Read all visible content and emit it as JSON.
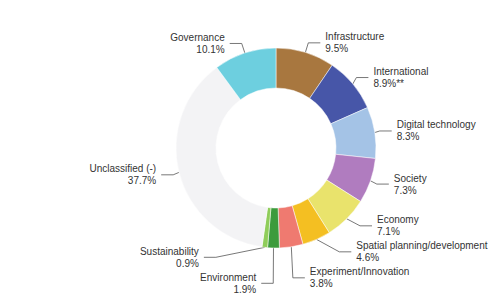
{
  "chart_data": {
    "type": "donut",
    "categories": [
      "Infrastructure",
      "International",
      "Digital technology",
      "Society",
      "Economy",
      "Spatial planning/development",
      "Experiment/Innovation",
      "Environment",
      "Sustainability",
      "Unclassified (-)",
      "Governance"
    ],
    "values": [
      9.5,
      8.9,
      8.3,
      7.3,
      7.1,
      4.6,
      3.8,
      1.9,
      0.9,
      37.7,
      10.1
    ],
    "value_labels": [
      "9.5%",
      "8.9%**",
      "8.3%",
      "7.3%",
      "7.1%",
      "4.6%",
      "3.8%",
      "1.9%",
      "0.9%",
      "37.7%",
      "10.1%"
    ],
    "colors": [
      "#a8773f",
      "#4756a8",
      "#a4c3e6",
      "#b07cbf",
      "#e9e36c",
      "#f4bf22",
      "#ef7a70",
      "#3c9b3c",
      "#8fcd5a",
      "#f3f3f5",
      "#6dcfdf"
    ],
    "data_labels": true
  }
}
